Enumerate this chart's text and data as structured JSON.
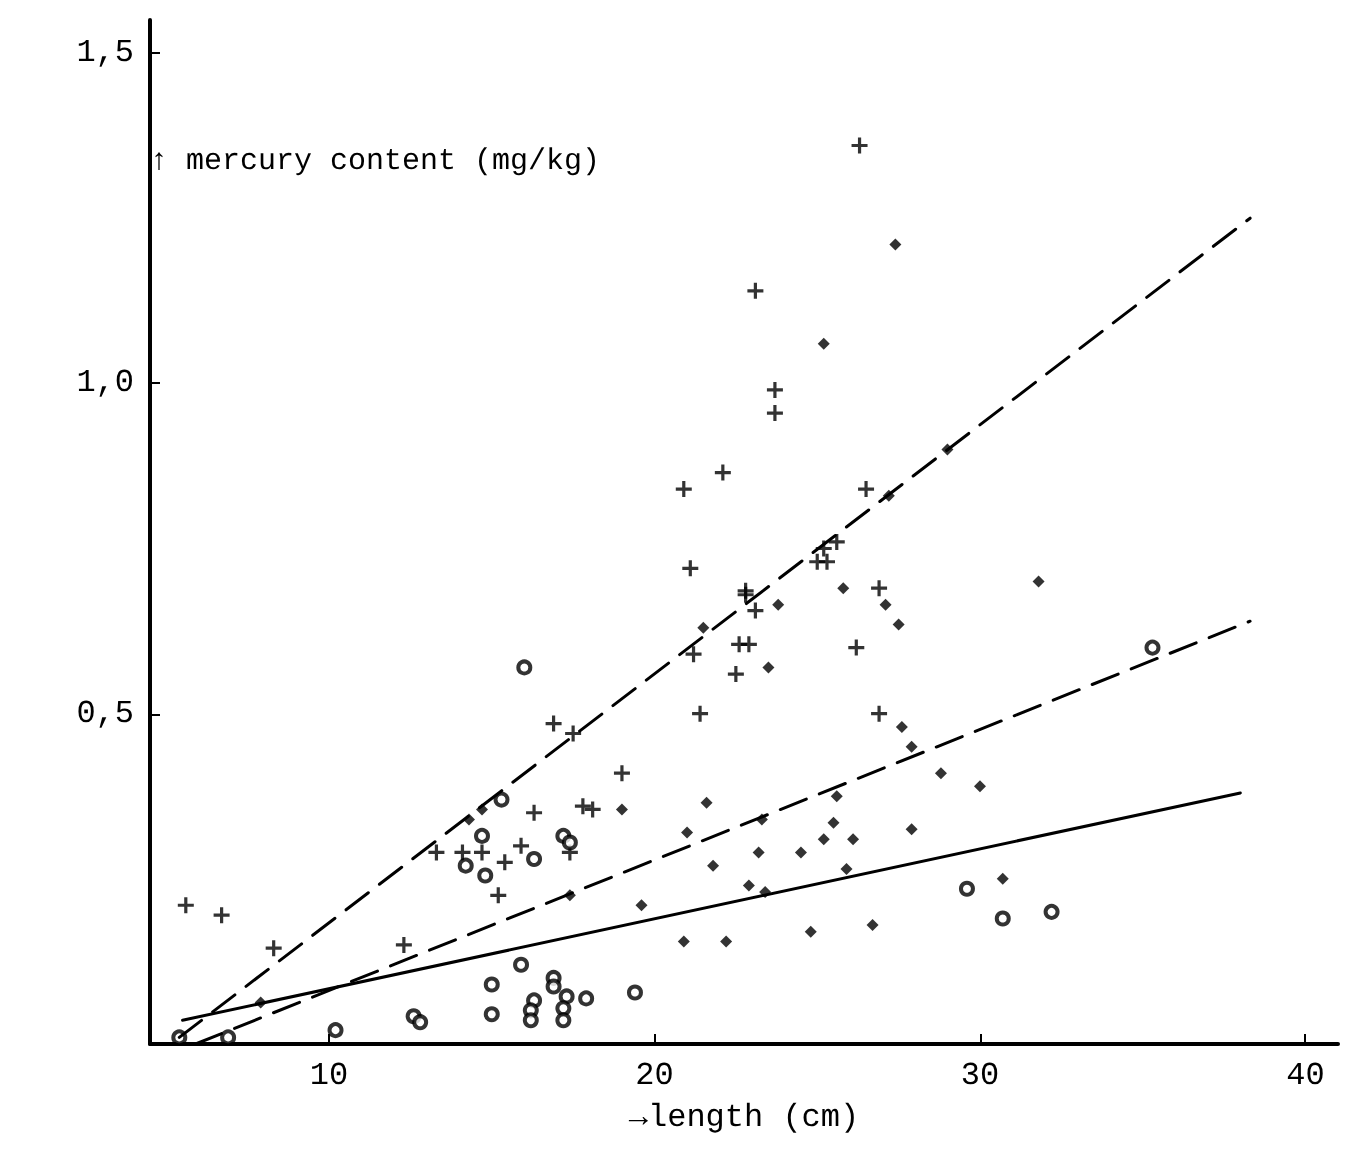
{
  "chart_data": {
    "type": "scatter",
    "xlabel": "→length (cm)",
    "ylabel": "↑ mercury content (mg/kg)",
    "xlim": [
      4.5,
      41
    ],
    "xticks": [
      10,
      20,
      30,
      40
    ],
    "ylim": [
      0,
      1.55
    ],
    "yticks": [
      {
        "value": 0.5,
        "label": "0,5"
      },
      {
        "value": 1.0,
        "label": "1,0"
      },
      {
        "value": 1.5,
        "label": "1,5"
      }
    ],
    "grid": false,
    "series": [
      {
        "marker": "cross",
        "color": "#000000",
        "x": [
          23.1,
          20.9,
          22.1,
          21.1,
          22.8,
          23.7,
          23.7,
          26.5,
          25.6,
          25.2,
          25.0,
          25.3,
          22.8,
          23.1,
          26.9,
          21.2,
          22.6,
          22.9,
          22.5,
          26.2,
          21.4,
          26.9,
          26.3,
          16.9,
          17.5,
          19.0,
          17.8,
          18.1,
          16.3,
          13.3,
          14.1,
          14.7,
          15.4,
          15.9,
          17.4,
          15.2,
          5.6,
          6.7,
          8.3,
          12.3
        ],
        "values": [
          1.14,
          0.84,
          0.865,
          0.72,
          0.68,
          0.99,
          0.955,
          0.84,
          0.76,
          0.75,
          0.73,
          0.73,
          0.686,
          0.656,
          0.69,
          0.59,
          0.605,
          0.605,
          0.56,
          0.6,
          0.5,
          0.5,
          1.36,
          0.485,
          0.47,
          0.41,
          0.36,
          0.355,
          0.35,
          0.29,
          0.29,
          0.29,
          0.275,
          0.3,
          0.29,
          0.225,
          0.21,
          0.195,
          0.145,
          0.15
        ]
      },
      {
        "marker": "diamond",
        "color": "#000000",
        "x": [
          27.4,
          25.2,
          29.0,
          27.2,
          21.5,
          23.8,
          25.8,
          27.1,
          27.5,
          31.8,
          23.5,
          27.6,
          27.9,
          21.6,
          21.0,
          23.3,
          25.6,
          25.5,
          25.2,
          26.1,
          27.9,
          28.8,
          30.0,
          21.8,
          23.2,
          24.5,
          22.9,
          23.4,
          25.9,
          20.9,
          22.2,
          24.8,
          26.7,
          30.7,
          19.0,
          14.7,
          14.3,
          17.4,
          19.6,
          7.9
        ],
        "values": [
          1.21,
          1.06,
          0.9,
          0.83,
          0.63,
          0.665,
          0.69,
          0.665,
          0.635,
          0.7,
          0.57,
          0.48,
          0.45,
          0.365,
          0.32,
          0.34,
          0.375,
          0.335,
          0.31,
          0.31,
          0.325,
          0.41,
          0.39,
          0.27,
          0.29,
          0.29,
          0.24,
          0.23,
          0.265,
          0.155,
          0.155,
          0.17,
          0.18,
          0.25,
          0.355,
          0.355,
          0.34,
          0.225,
          0.21,
          0.063
        ]
      },
      {
        "marker": "circle",
        "color": "#000000",
        "x": [
          35.3,
          29.6,
          30.7,
          32.2,
          16.0,
          15.3,
          14.7,
          14.2,
          16.3,
          17.2,
          17.4,
          14.8,
          15.9,
          15.0,
          16.9,
          16.9,
          17.9,
          19.4,
          16.3,
          16.2,
          16.2,
          17.3,
          17.2,
          17.2,
          15.0,
          12.6,
          12.8,
          10.2,
          6.9,
          5.4
        ],
        "values": [
          0.6,
          0.235,
          0.19,
          0.2,
          0.57,
          0.37,
          0.315,
          0.27,
          0.28,
          0.315,
          0.305,
          0.255,
          0.12,
          0.09,
          0.1,
          0.087,
          0.069,
          0.078,
          0.066,
          0.051,
          0.036,
          0.072,
          0.054,
          0.036,
          0.045,
          0.042,
          0.033,
          0.021,
          0.01,
          0.01
        ]
      },
      {
        "type": "line",
        "marker": "none",
        "line_style": "dashed",
        "color": "#000000",
        "x": [
          5.4,
          38.3
        ],
        "values": [
          0.01,
          1.25
        ]
      },
      {
        "type": "line",
        "marker": "none",
        "line_style": "dashed",
        "color": "#000000",
        "x": [
          5.9,
          38.3
        ],
        "values": [
          0.0,
          0.64
        ]
      },
      {
        "type": "line",
        "marker": "none",
        "line_style": "solid",
        "color": "#000000",
        "x": [
          5.5,
          38.0
        ],
        "values": [
          0.036,
          0.38
        ]
      }
    ]
  }
}
